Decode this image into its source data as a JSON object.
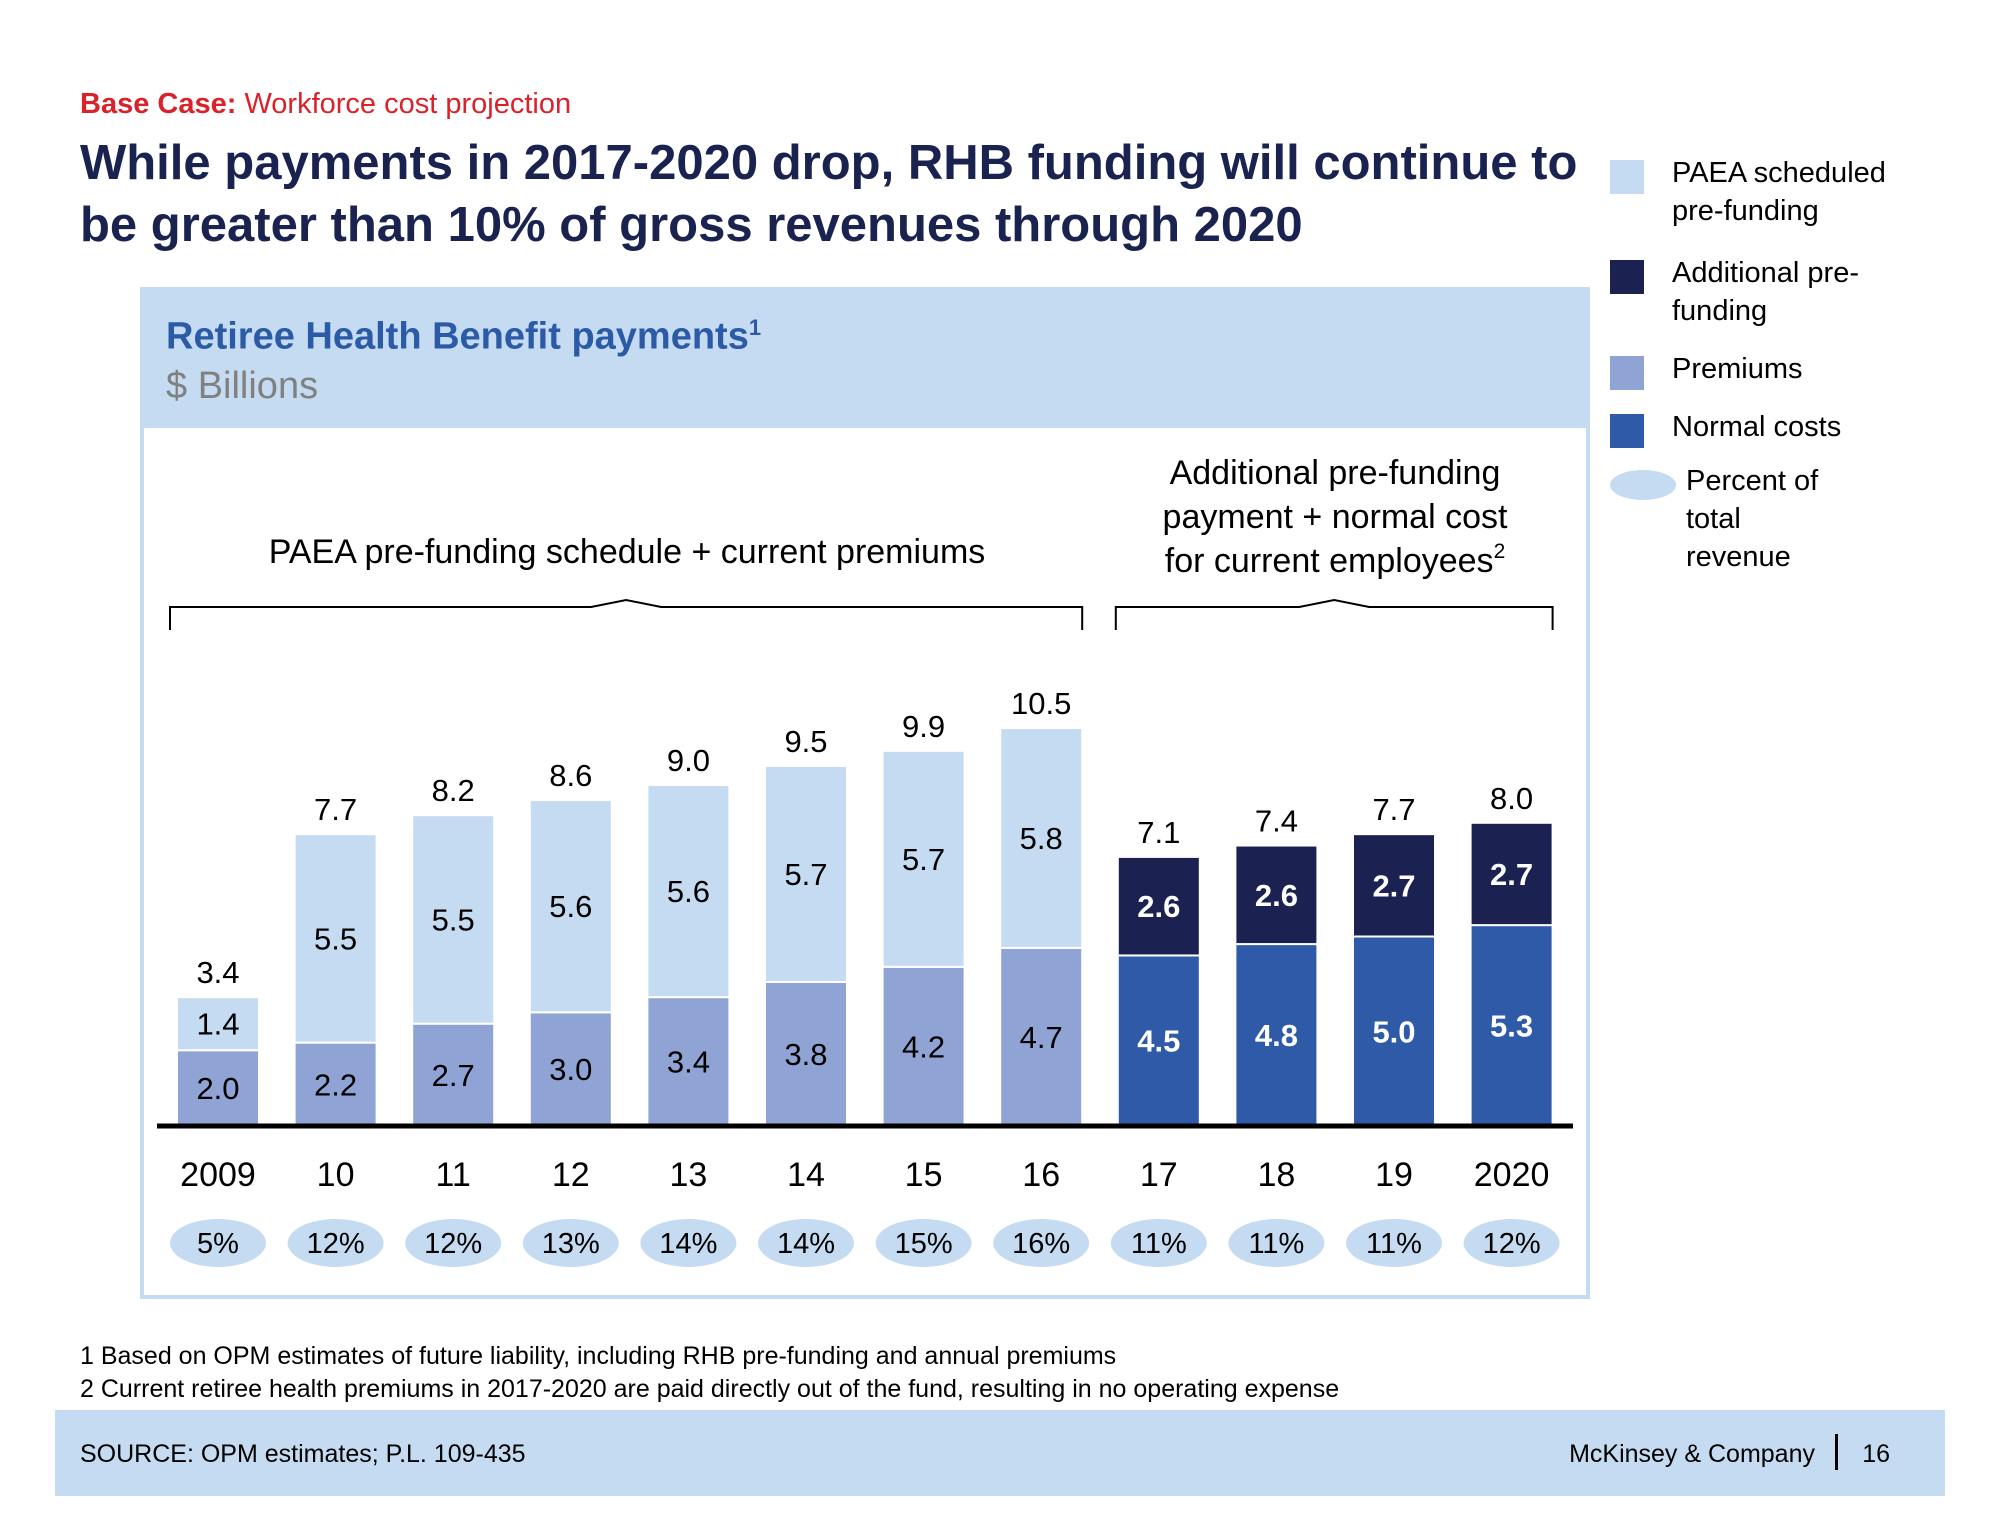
{
  "header": {
    "kicker_bold": "Base Case:",
    "kicker_text": "Workforce cost projection",
    "headline": "While payments in 2017-2020 drop, RHB funding will continue to be greater than 10% of gross revenues through 2020"
  },
  "chart_data": {
    "type": "bar",
    "stacked": true,
    "title": "Retiree Health Benefit payments",
    "title_superscript": "1",
    "unit": "$ Billions",
    "categories": [
      "2009",
      "10",
      "11",
      "12",
      "13",
      "14",
      "15",
      "16",
      "17",
      "18",
      "19",
      "2020"
    ],
    "series": [
      {
        "name": "Premiums",
        "color": "#8fa4d4",
        "values": [
          2.0,
          2.2,
          2.7,
          3.0,
          3.4,
          3.8,
          4.2,
          4.7,
          null,
          null,
          null,
          null
        ]
      },
      {
        "name": "PAEA scheduled pre-funding",
        "color": "#c5dbf1",
        "values": [
          1.4,
          5.5,
          5.5,
          5.6,
          5.6,
          5.7,
          5.7,
          5.8,
          null,
          null,
          null,
          null
        ]
      },
      {
        "name": "Normal costs",
        "color": "#2e5aa8",
        "values": [
          null,
          null,
          null,
          null,
          null,
          null,
          null,
          null,
          4.5,
          4.8,
          5.0,
          5.3
        ]
      },
      {
        "name": "Additional pre-funding",
        "color": "#1b2150",
        "values": [
          null,
          null,
          null,
          null,
          null,
          null,
          null,
          null,
          2.6,
          2.6,
          2.7,
          2.7
        ]
      }
    ],
    "totals": [
      "3.4",
      "7.7",
      "8.2",
      "8.6",
      "9.0",
      "9.5",
      "9.9",
      "10.5",
      "7.1",
      "7.4",
      "7.7",
      "8.0"
    ],
    "percent_of_total_revenue": [
      "5%",
      "12%",
      "12%",
      "13%",
      "14%",
      "14%",
      "15%",
      "16%",
      "11%",
      "11%",
      "11%",
      "12%"
    ],
    "ylim": [
      0,
      11
    ],
    "grid": false,
    "legend_position": "right",
    "annotations": [
      {
        "text": "PAEA pre-funding schedule + current premiums",
        "from": "2009",
        "to": "16"
      },
      {
        "text": "Additional pre-funding payment + normal cost for current employees",
        "superscript": "2",
        "from": "17",
        "to": "2020"
      }
    ]
  },
  "legend": {
    "items": [
      {
        "label": "PAEA scheduled pre-funding",
        "color": "#c5dbf1"
      },
      {
        "label": "Additional pre-funding",
        "color": "#1b2150"
      },
      {
        "label": "Premiums",
        "color": "#8fa4d4"
      },
      {
        "label": "Normal costs",
        "color": "#2e5aa8"
      },
      {
        "label": "Percent of total revenue",
        "color": "#c5dbf1"
      }
    ]
  },
  "footnotes": [
    "1 Based on OPM estimates of future liability, including RHB pre-funding and annual premiums",
    "2 Current retiree health premiums in 2017-2020 are paid directly out of the fund, resulting in no operating expense"
  ],
  "footer": {
    "source": "SOURCE: OPM estimates; P.L. 109-435",
    "brand": "McKinsey & Company",
    "page": "16"
  }
}
